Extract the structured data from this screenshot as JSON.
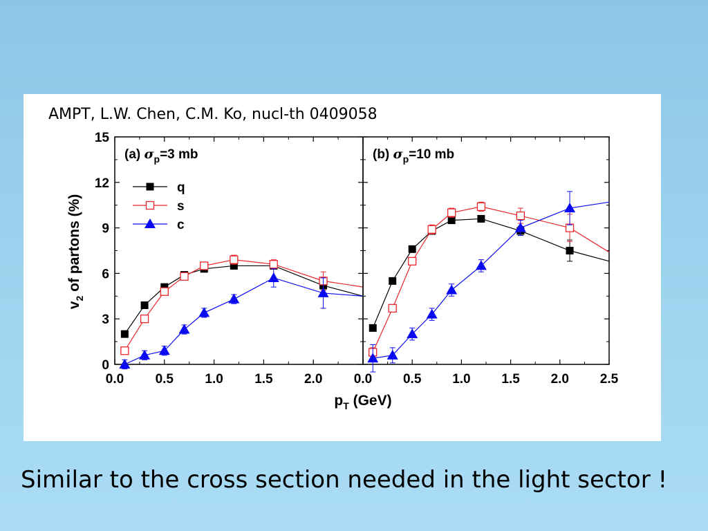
{
  "slide": {
    "citation": "AMPT,  L.W. Chen, C.M. Ko, nucl-th 0409058",
    "caption": "Similar to the cross section needed in the light sector !"
  },
  "colors": {
    "background": "#9fd4ef",
    "q": "#000000",
    "s": "#e8262b",
    "c": "#0a0af0"
  },
  "chart_data": {
    "type": "line",
    "ylabel": "v2 of partons (%)",
    "xlabel": "pT (GeV)",
    "ylim": [
      0,
      15
    ],
    "yticks": [
      0,
      3,
      6,
      9,
      12,
      15
    ],
    "panels": [
      {
        "id": "a",
        "label_prefix": "(a) ",
        "label_sigma": "σ",
        "label_sub": "p",
        "label_suffix": "=3 mb",
        "xlim": [
          0,
          2.5
        ],
        "xticks": [
          0.0,
          0.5,
          1.0,
          1.5,
          2.0
        ],
        "legend": [
          {
            "name": "q",
            "marker": "square-filled"
          },
          {
            "name": "s",
            "marker": "square-open"
          },
          {
            "name": "c",
            "marker": "triangle-filled"
          }
        ],
        "series": [
          {
            "name": "q",
            "marker": "square-filled",
            "x": [
              0.1,
              0.3,
              0.5,
              0.7,
              0.9,
              1.2,
              1.6,
              2.1
            ],
            "y": [
              2.0,
              3.9,
              5.1,
              5.9,
              6.3,
              6.5,
              6.5,
              5.2
            ],
            "err": [
              0.1,
              0.1,
              0.1,
              0.1,
              0.1,
              0.1,
              0.1,
              0.3
            ],
            "tail": [
              2.5,
              4.5
            ]
          },
          {
            "name": "s",
            "marker": "square-open",
            "x": [
              0.1,
              0.3,
              0.5,
              0.7,
              0.9,
              1.2,
              1.6,
              2.1
            ],
            "y": [
              0.9,
              3.0,
              4.8,
              5.8,
              6.5,
              6.9,
              6.6,
              5.5
            ],
            "err": [
              0.2,
              0.2,
              0.2,
              0.2,
              0.2,
              0.3,
              0.3,
              0.6
            ],
            "tail": [
              2.5,
              5.1
            ]
          },
          {
            "name": "c",
            "marker": "triangle-filled",
            "x": [
              0.1,
              0.3,
              0.5,
              0.7,
              0.9,
              1.2,
              1.6,
              2.1
            ],
            "y": [
              0.0,
              0.6,
              0.9,
              2.3,
              3.4,
              4.3,
              5.7,
              4.7
            ],
            "err": [
              0.3,
              0.3,
              0.3,
              0.3,
              0.3,
              0.3,
              0.6,
              1.0
            ],
            "tail": [
              2.5,
              4.5
            ]
          }
        ]
      },
      {
        "id": "b",
        "label_prefix": "(b) ",
        "label_sigma": "σ",
        "label_sub": "p",
        "label_suffix": "=10 mb",
        "xlim": [
          0,
          2.5
        ],
        "xticks": [
          0.0,
          0.5,
          1.0,
          1.5,
          2.0,
          2.5
        ],
        "series": [
          {
            "name": "q",
            "marker": "square-filled",
            "x": [
              0.1,
              0.3,
              0.5,
              0.7,
              0.9,
              1.2,
              1.6,
              2.1
            ],
            "y": [
              2.4,
              5.5,
              7.6,
              8.8,
              9.5,
              9.6,
              8.8,
              7.5
            ],
            "err": [
              0.1,
              0.1,
              0.1,
              0.2,
              0.2,
              0.2,
              0.3,
              0.7
            ],
            "tail": [
              2.5,
              6.8
            ]
          },
          {
            "name": "s",
            "marker": "square-open",
            "x": [
              0.1,
              0.3,
              0.5,
              0.7,
              0.9,
              1.2,
              1.6,
              2.1
            ],
            "y": [
              0.8,
              3.7,
              6.8,
              8.9,
              10.0,
              10.4,
              9.8,
              9.0
            ],
            "err": [
              0.3,
              0.2,
              0.2,
              0.3,
              0.3,
              0.3,
              0.5,
              0.9
            ],
            "tail": [
              2.5,
              7.4
            ]
          },
          {
            "name": "c",
            "marker": "triangle-filled",
            "x": [
              0.1,
              0.3,
              0.5,
              0.7,
              0.9,
              1.2,
              1.6,
              2.1
            ],
            "y": [
              0.4,
              0.6,
              2.0,
              3.3,
              4.9,
              6.5,
              9.0,
              10.3
            ],
            "err": [
              0.9,
              0.5,
              0.4,
              0.4,
              0.4,
              0.4,
              0.5,
              1.1
            ],
            "tail": [
              2.5,
              10.7
            ]
          }
        ]
      }
    ]
  }
}
